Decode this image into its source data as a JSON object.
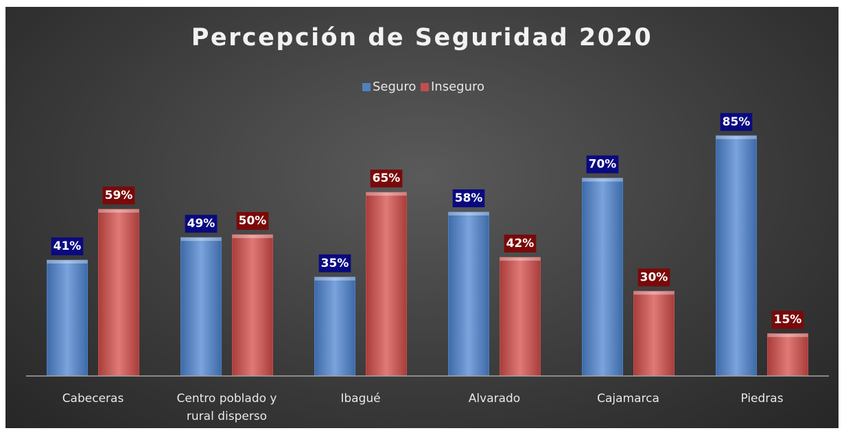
{
  "chart_data": {
    "type": "bar",
    "title": "Percepción de Seguridad 2020",
    "categories": [
      "Cabeceras",
      "Centro poblado y rural disperso",
      "Ibagué",
      "Alvarado",
      "Cajamarca",
      "Piedras"
    ],
    "series": [
      {
        "name": "Seguro",
        "color": "#4f81bd",
        "values": [
          41,
          49,
          35,
          58,
          70,
          85
        ],
        "value_labels": [
          "41%",
          "49%",
          "35%",
          "58%",
          "70%",
          "85%"
        ]
      },
      {
        "name": "Inseguro",
        "color": "#c0504d",
        "values": [
          59,
          50,
          65,
          42,
          30,
          15
        ],
        "value_labels": [
          "59%",
          "50%",
          "65%",
          "42%",
          "30%",
          "15%"
        ]
      }
    ],
    "ylim": [
      0,
      100
    ],
    "legend": "top"
  }
}
